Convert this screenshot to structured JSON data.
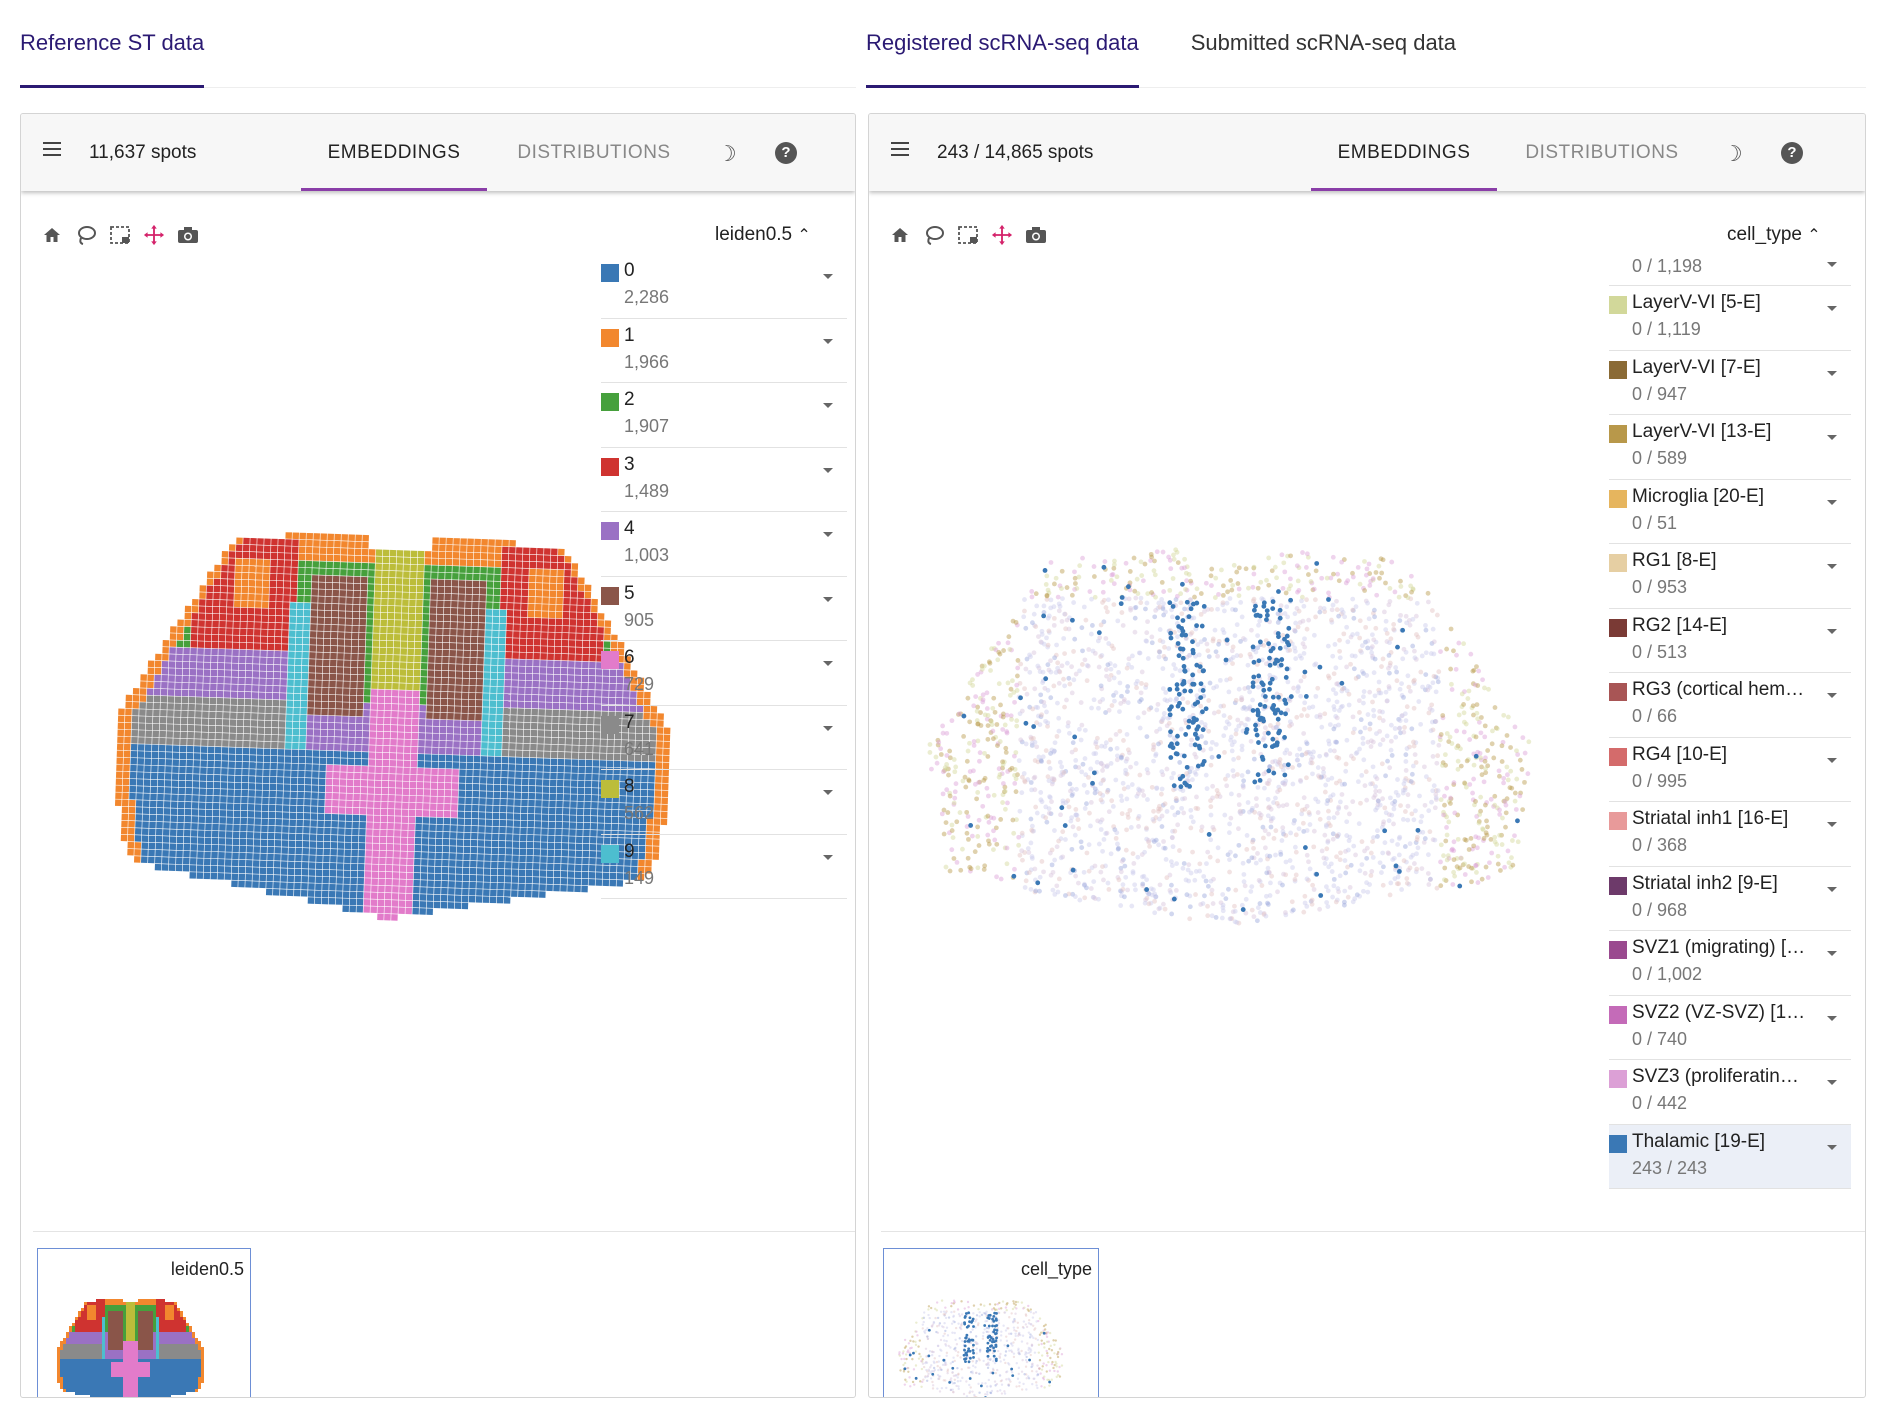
{
  "top_tabs_left": [
    {
      "label": "Reference ST data",
      "active": true
    }
  ],
  "top_tabs_right": [
    {
      "label": "Registered scRNA-seq data",
      "active": true
    },
    {
      "label": "Submitted scRNA-seq data",
      "active": false
    }
  ],
  "left_panel": {
    "spots": "11,637 spots",
    "tab_embeddings": "EMBEDDINGS",
    "tab_distributions": "DISTRIBUTIONS",
    "legend_title": "leiden0.5",
    "thumbnail_label": "leiden0.5",
    "legend": [
      {
        "label": "0",
        "count": "2,286",
        "color": "#3a78b5"
      },
      {
        "label": "1",
        "count": "1,966",
        "color": "#f2872e"
      },
      {
        "label": "2",
        "count": "1,907",
        "color": "#46a03c"
      },
      {
        "label": "3",
        "count": "1,489",
        "color": "#cf3330"
      },
      {
        "label": "4",
        "count": "1,003",
        "color": "#9a71c4"
      },
      {
        "label": "5",
        "count": "905",
        "color": "#8a5549"
      },
      {
        "label": "6",
        "count": "729",
        "color": "#e27bca"
      },
      {
        "label": "7",
        "count": "641",
        "color": "#8a8a8a"
      },
      {
        "label": "8",
        "count": "562",
        "color": "#bcbd3a"
      },
      {
        "label": "9",
        "count": "149",
        "color": "#4dbecf"
      }
    ]
  },
  "right_panel": {
    "spots": "243 / 14,865 spots",
    "tab_embeddings": "EMBEDDINGS",
    "tab_distributions": "DISTRIBUTIONS",
    "legend_title": "cell_type",
    "thumbnail_label": "cell_type",
    "legend_top_count": "0 / 1,198",
    "legend": [
      {
        "label": "LayerV-VI [5-E]",
        "count": "0 / 1,119",
        "color": "#d2d89a"
      },
      {
        "label": "LayerV-VI [7-E]",
        "count": "0 / 947",
        "color": "#8a6a35"
      },
      {
        "label": "LayerV-VI [13-E]",
        "count": "0 / 589",
        "color": "#b8984a"
      },
      {
        "label": "Microglia [20-E]",
        "count": "0 / 51",
        "color": "#e6b55e"
      },
      {
        "label": "RG1 [8-E]",
        "count": "0 / 953",
        "color": "#e6cfa3"
      },
      {
        "label": "RG2 [14-E]",
        "count": "0 / 513",
        "color": "#7a3a35"
      },
      {
        "label": "RG3 (cortical hem…",
        "count": "0 / 66",
        "color": "#a85555"
      },
      {
        "label": "RG4 [10-E]",
        "count": "0 / 995",
        "color": "#d46b6b"
      },
      {
        "label": "Striatal inh1 [16-E]",
        "count": "0 / 368",
        "color": "#e89a9a"
      },
      {
        "label": "Striatal inh2 [9-E]",
        "count": "0 / 968",
        "color": "#6d3a6a"
      },
      {
        "label": "SVZ1 (migrating) […",
        "count": "0 / 1,002",
        "color": "#9a4a8f"
      },
      {
        "label": "SVZ2 (VZ-SVZ) [1…",
        "count": "0 / 740",
        "color": "#c46bb8"
      },
      {
        "label": "SVZ3 (proliferatin…",
        "count": "0 / 442",
        "color": "#dca0d6"
      },
      {
        "label": "Thalamic [19-E]",
        "count": "243 / 243",
        "color": "#3a78b5",
        "selected": true
      }
    ]
  },
  "icons": [
    "home-icon",
    "lasso-icon",
    "box-select-icon",
    "pan-icon",
    "camera-icon",
    "menu-icon",
    "moon-icon",
    "help-icon",
    "chevron-up-icon",
    "caret-down-icon"
  ]
}
